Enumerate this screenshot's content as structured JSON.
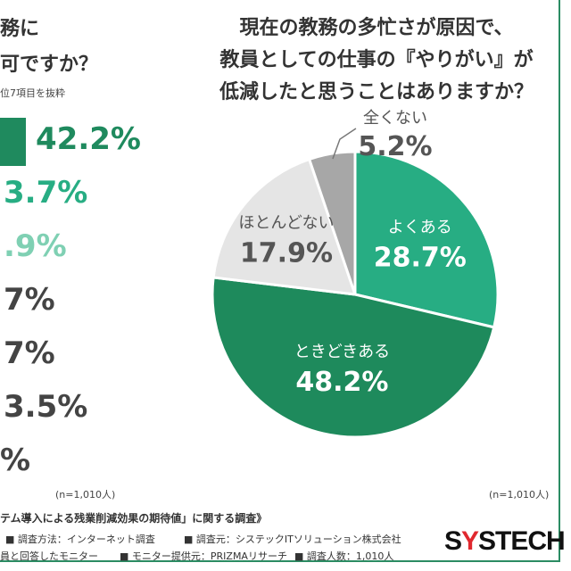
{
  "left": {
    "title_lines": [
      "務に",
      "可ですか？"
    ],
    "note": "位7項目を抜粋",
    "values": [
      "42.2%",
      "3.7%",
      ".9%",
      "7%",
      "7%",
      "3.5%",
      "%"
    ],
    "n": "(n=1,010人)"
  },
  "right": {
    "title_lines": [
      "現在の教務の多忙さが原因で、",
      "教員としての仕事の『やりがい』が",
      "低減したと思うことはありますか？"
    ],
    "n": "(n=1,010人)"
  },
  "chart_data": {
    "type": "pie",
    "title": "現在の教務の多忙さが原因で、教員としての仕事の『やりがい』が低減したと思うことはありますか？",
    "slices": [
      {
        "label": "よくある",
        "value": 28.7,
        "value_label": "28.7%",
        "color": "#27ad83"
      },
      {
        "label": "ときどきある",
        "value": 48.2,
        "value_label": "48.2%",
        "color": "#1e8a5c"
      },
      {
        "label": "ほとんどない",
        "value": 17.9,
        "value_label": "17.9%",
        "color": "#e5e5e5"
      },
      {
        "label": "全くない",
        "value": 5.2,
        "value_label": "5.2%",
        "color": "#a7a7a7"
      }
    ]
  },
  "footer": {
    "survey_title": "テム導入による残業削減効果の期待値」に関する調査》",
    "method": "■ 調査方法：インターネット調査",
    "source": "■ 調査元：システックITソリューション株式会社",
    "respondents": "員と回答したモニター",
    "provider": "■ モニター提供元：PRIZMAリサーチ",
    "count": "■ 調査人数：1,010人",
    "logo_a": "S",
    "logo_b": "Y",
    "logo_c": "STECH"
  }
}
